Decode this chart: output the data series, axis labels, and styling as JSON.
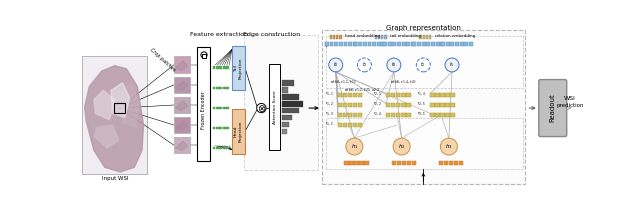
{
  "title": "Graph representation",
  "fig_width": 6.4,
  "fig_height": 2.14,
  "dpi": 100,
  "bg_color": "#ffffff",
  "legend_items": [
    {
      "label": "head embedding",
      "color": "#E8923A"
    },
    {
      "label": "tail embedding",
      "color": "#8BB8D8"
    },
    {
      "label": "relation embedding",
      "color": "#D4C060"
    }
  ],
  "wsi_label": "Input WSI",
  "crop_label": "Crop patches",
  "feature_label": "Feature extraction",
  "edge_label": "Edge construction",
  "readout_label": "Readout",
  "wsi_pred_label": "WSI\nprediction",
  "tail_proj_color": "#C5D9ED",
  "head_proj_color": "#F0C8A0",
  "node_color_blue": "#4472C4",
  "embed_color_blue": "#8BB8D8",
  "embed_color_yellow": "#D4C060",
  "embed_color_orange": "#E8923A",
  "readout_box_color": "#C0C0C0",
  "patch_colors": [
    "#C8A0B8",
    "#B898B0",
    "#C0A8B8",
    "#B890A8",
    "#C8B0C0"
  ]
}
